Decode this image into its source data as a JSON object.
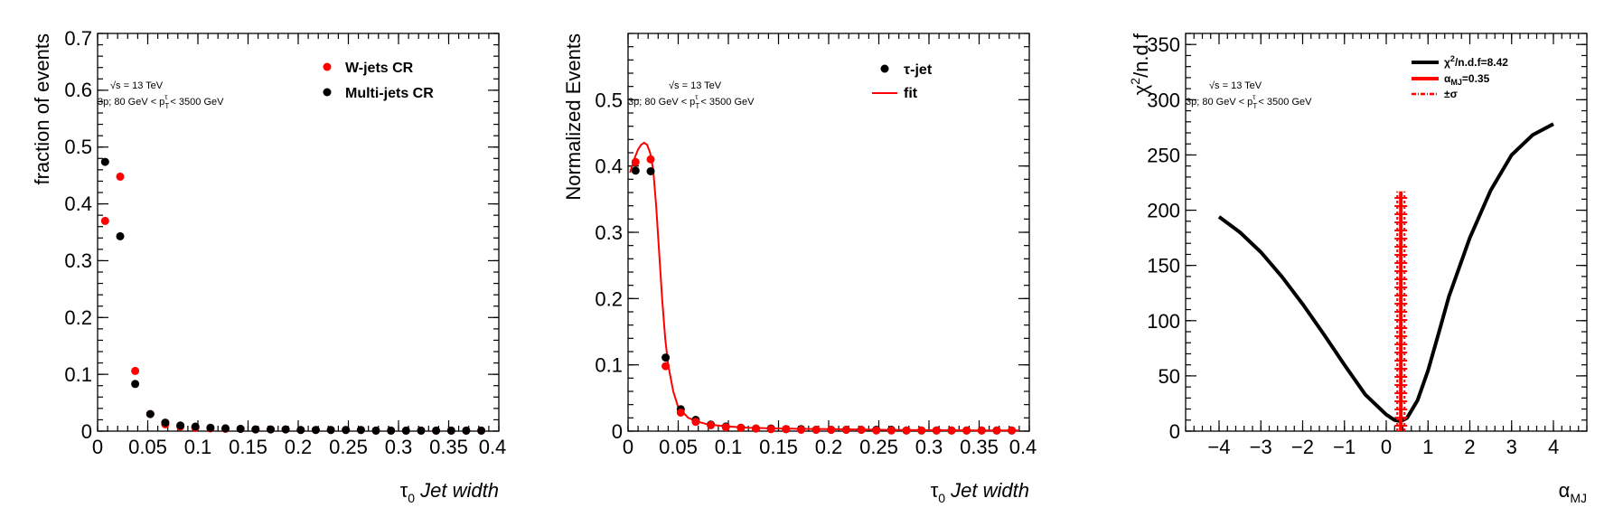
{
  "colors": {
    "red": "#ff0000",
    "black": "#000000"
  },
  "chart_data": [
    {
      "type": "scatter",
      "xlabel_var": "τ",
      "xlabel_sub": "0",
      "xlabel_rest": " Jet width",
      "ylabel": "fraction of events",
      "xlim": [
        0,
        0.4
      ],
      "ylim": [
        0,
        0.7
      ],
      "xticks": [
        0,
        0.05,
        0.1,
        0.15,
        0.2,
        0.25,
        0.3,
        0.35,
        0.4
      ],
      "xtick_labels": [
        "0",
        "0.05",
        "0.1",
        "0.15",
        "0.2",
        "0.25",
        "0.3",
        "0.35",
        "0.4"
      ],
      "yticks": [
        0,
        0.1,
        0.2,
        0.3,
        0.4,
        0.5,
        0.6,
        0.7
      ],
      "ytick_labels": [
        "0",
        "0.1",
        "0.2",
        "0.3",
        "0.4",
        "0.5",
        "0.6",
        "0.7"
      ],
      "annotation_energy": "√s = 13 TeV",
      "annotation_cut_a": "3p; 80 GeV < p",
      "annotation_cut_sub": "T",
      "annotation_cut_sup": "τ",
      "annotation_cut_b": " < 3500 GeV",
      "legend_position": "top-right",
      "series": [
        {
          "name": "W-jets CR",
          "color": "#ff0000",
          "x": [
            0.0075,
            0.0225,
            0.0375,
            0.0525,
            0.0675,
            0.0825,
            0.0975,
            0.1125,
            0.1275,
            0.1425,
            0.1575,
            0.1725,
            0.1875,
            0.2025,
            0.2175,
            0.2325,
            0.2475,
            0.2625,
            0.2775,
            0.2925,
            0.3075,
            0.3225,
            0.3375,
            0.3525,
            0.3675,
            0.3825
          ],
          "y": [
            0.37,
            0.448,
            0.106,
            0.03,
            0.012,
            0.008,
            0.006,
            0.005,
            0.004,
            0.004,
            0.003,
            0.003,
            0.003,
            0.002,
            0.002,
            0.002,
            0.002,
            0.002,
            0.001,
            0.001,
            0.001,
            0.001,
            0.001,
            0.001,
            0.001,
            0.001
          ]
        },
        {
          "name": "Multi-jets CR",
          "color": "#000000",
          "x": [
            0.0075,
            0.0225,
            0.0375,
            0.0525,
            0.0675,
            0.0825,
            0.0975,
            0.1125,
            0.1275,
            0.1425,
            0.1575,
            0.1725,
            0.1875,
            0.2025,
            0.2175,
            0.2325,
            0.2475,
            0.2625,
            0.2775,
            0.2925,
            0.3075,
            0.3225,
            0.3375,
            0.3525,
            0.3675,
            0.3825
          ],
          "y": [
            0.474,
            0.343,
            0.083,
            0.03,
            0.015,
            0.01,
            0.008,
            0.006,
            0.005,
            0.004,
            0.003,
            0.003,
            0.003,
            0.002,
            0.002,
            0.002,
            0.002,
            0.002,
            0.001,
            0.001,
            0.001,
            0.001,
            0.001,
            0.001,
            0.001,
            0.001
          ]
        }
      ]
    },
    {
      "type": "scatter",
      "xlabel_var": "τ",
      "xlabel_sub": "0",
      "xlabel_rest": " Jet width",
      "ylabel": "Normalized Events",
      "xlim": [
        0,
        0.4
      ],
      "ylim": [
        0,
        0.6
      ],
      "xticks": [
        0,
        0.05,
        0.1,
        0.15,
        0.2,
        0.25,
        0.3,
        0.35,
        0.4
      ],
      "xtick_labels": [
        "0",
        "0.05",
        "0.1",
        "0.15",
        "0.2",
        "0.25",
        "0.3",
        "0.35",
        "0.4"
      ],
      "yticks": [
        0,
        0.1,
        0.2,
        0.3,
        0.4,
        0.5
      ],
      "ytick_labels": [
        "0",
        "0.1",
        "0.2",
        "0.3",
        "0.4",
        "0.5"
      ],
      "annotation_energy": "√s = 13 TeV",
      "annotation_cut_a": "3p; 80 GeV < p",
      "annotation_cut_sub": "T",
      "annotation_cut_sup": "τ",
      "annotation_cut_b": " < 3500 GeV",
      "legend_position": "top-right",
      "series": [
        {
          "name": "τ-jet",
          "color": "#000000",
          "x": [
            0.0075,
            0.0225,
            0.0375,
            0.0525,
            0.0675,
            0.0825,
            0.0975,
            0.1125,
            0.1275,
            0.1425,
            0.1575,
            0.1725,
            0.1875,
            0.2025,
            0.2175,
            0.2325,
            0.2475,
            0.2625,
            0.2775,
            0.2925,
            0.3075,
            0.3225,
            0.3375,
            0.3525,
            0.3675,
            0.3825
          ],
          "y": [
            0.393,
            0.392,
            0.111,
            0.033,
            0.017,
            0.01,
            0.007,
            0.005,
            0.004,
            0.004,
            0.003,
            0.003,
            0.002,
            0.002,
            0.002,
            0.002,
            0.002,
            0.002,
            0.001,
            0.001,
            0.001,
            0.001,
            0.001,
            0.001,
            0.001,
            0.001
          ]
        },
        {
          "name": "",
          "color": "#ff0000",
          "x": [
            0.0075,
            0.0225,
            0.0375,
            0.0525,
            0.0675,
            0.0825,
            0.0975,
            0.1125,
            0.1275,
            0.1425,
            0.1575,
            0.1725,
            0.1875,
            0.2025,
            0.2175,
            0.2325,
            0.2475,
            0.2625,
            0.2775,
            0.2925,
            0.3075,
            0.3225,
            0.3375,
            0.3525,
            0.3675,
            0.3825
          ],
          "y": [
            0.406,
            0.41,
            0.098,
            0.028,
            0.014,
            0.009,
            0.006,
            0.005,
            0.004,
            0.003,
            0.003,
            0.002,
            0.002,
            0.002,
            0.002,
            0.002,
            0.001,
            0.001,
            0.001,
            0.001,
            0.001,
            0.001,
            0.001,
            0.001,
            0.001,
            0.001
          ]
        },
        {
          "name": "fit",
          "color": "#ff0000",
          "style": "line",
          "x": [
            0.002,
            0.006,
            0.01,
            0.013,
            0.016,
            0.019,
            0.022,
            0.025,
            0.028,
            0.031,
            0.034,
            0.037,
            0.04,
            0.045,
            0.05,
            0.06,
            0.07,
            0.08,
            0.1,
            0.12,
            0.15,
            0.2,
            0.25,
            0.3,
            0.35,
            0.39
          ],
          "y": [
            0.39,
            0.41,
            0.425,
            0.432,
            0.435,
            0.432,
            0.42,
            0.395,
            0.34,
            0.27,
            0.2,
            0.14,
            0.1,
            0.06,
            0.036,
            0.02,
            0.014,
            0.01,
            0.007,
            0.005,
            0.004,
            0.003,
            0.002,
            0.0015,
            0.001,
            0.001
          ]
        }
      ]
    },
    {
      "type": "line",
      "xlabel_var": "α",
      "xlabel_sub": "MJ",
      "xlabel_rest": "",
      "ylabel_a": "χ",
      "ylabel_sup": "2",
      "ylabel_b": "/n.d.f",
      "xlim": [
        -4.8,
        4.8
      ],
      "ylim": [
        0,
        360
      ],
      "xticks": [
        -4,
        -3,
        -2,
        -1,
        0,
        1,
        2,
        3,
        4
      ],
      "xtick_labels": [
        "−4",
        "−3",
        "−2",
        "−1",
        "0",
        "1",
        "2",
        "3",
        "4"
      ],
      "yticks": [
        0,
        50,
        100,
        150,
        200,
        250,
        300,
        350
      ],
      "ytick_labels": [
        "0",
        "50",
        "100",
        "150",
        "200",
        "250",
        "300",
        "350"
      ],
      "annotation_energy": "√s = 13 TeV",
      "annotation_cut_a": "3p; 80 GeV < p",
      "annotation_cut_sub": "T",
      "annotation_cut_sup": "τ",
      "annotation_cut_b": " < 3500 GeV",
      "legend_position": "top-right",
      "legend": {
        "chi2_a": "χ",
        "chi2_sup": "2",
        "chi2_b": "/n.d.f=8.42",
        "alpha_a": "α",
        "alpha_sub": "MJ",
        "alpha_b": "=0.35",
        "sigma": "±σ"
      },
      "curve": {
        "x": [
          -4.0,
          -3.5,
          -3.0,
          -2.5,
          -2.0,
          -1.5,
          -1.0,
          -0.5,
          0.0,
          0.2,
          0.35,
          0.5,
          0.75,
          1.0,
          1.25,
          1.5,
          2.0,
          2.5,
          3.0,
          3.5,
          4.0
        ],
        "y": [
          194,
          180,
          162,
          140,
          115,
          88,
          60,
          33,
          15,
          10,
          9,
          12,
          28,
          55,
          88,
          122,
          175,
          218,
          250,
          268,
          278
        ]
      },
      "alpha_value": 0.35,
      "alpha_line_top": 217
    }
  ]
}
